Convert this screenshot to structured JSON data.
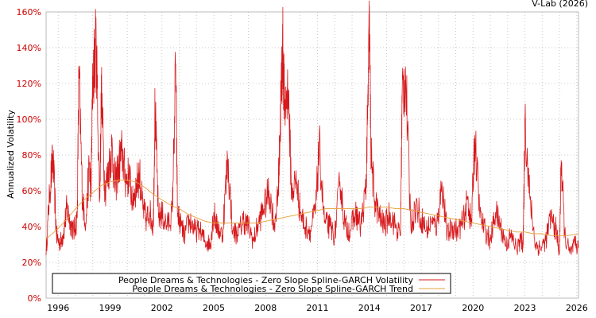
{
  "credit": "V-Lab (2026)",
  "colors": {
    "volatility": "#d7191c",
    "trend": "#e8a33d",
    "grid": "#c8c8c8",
    "tick_label": "#cc0000"
  },
  "chart_data": {
    "type": "line",
    "title": "",
    "xlabel": "",
    "ylabel": "Annualized Volatility",
    "xlim": [
      1995.3,
      2026.1
    ],
    "ylim": [
      0,
      160
    ],
    "y_ticks": [
      0,
      20,
      40,
      60,
      80,
      100,
      120,
      140,
      160
    ],
    "y_tick_labels": [
      "0%",
      "20%",
      "40%",
      "60%",
      "80%",
      "100%",
      "120%",
      "140%",
      "160%"
    ],
    "x_ticks": [
      1996,
      1999,
      2002,
      2005,
      2008,
      2011,
      2014,
      2017,
      2020,
      2023,
      2026
    ],
    "x_tick_labels": [
      "1996",
      "1999",
      "2002",
      "2005",
      "2008",
      "2011",
      "2014",
      "2017",
      "2020",
      "2023",
      "2026"
    ],
    "grid": true,
    "legend_position": "bottom-left",
    "series": [
      {
        "name": "People Dreams & Technologies - Zero Slope Spline-GARCH Volatility",
        "color": "#d7191c",
        "x": [
          1995.3,
          1995.5,
          1995.7,
          1995.9,
          1996.1,
          1996.3,
          1996.5,
          1996.7,
          1996.9,
          1997.1,
          1997.2,
          1997.4,
          1997.6,
          1997.8,
          1997.9,
          1998.0,
          1998.2,
          1998.4,
          1998.5,
          1998.7,
          1998.9,
          1999.1,
          1999.3,
          1999.5,
          1999.7,
          1999.9,
          2000.1,
          2000.3,
          2000.5,
          2000.7,
          2000.9,
          2001.1,
          2001.3,
          2001.5,
          2001.6,
          2001.8,
          2002.0,
          2002.3,
          2002.6,
          2002.8,
          2002.9,
          2003.1,
          2003.3,
          2003.6,
          2003.9,
          2004.2,
          2004.5,
          2004.8,
          2005.0,
          2005.2,
          2005.5,
          2005.8,
          2006.1,
          2006.4,
          2006.7,
          2007.0,
          2007.3,
          2007.6,
          2007.9,
          2008.2,
          2008.5,
          2008.7,
          2008.8,
          2008.9,
          2009.0,
          2009.1,
          2009.3,
          2009.5,
          2009.8,
          2010.0,
          2010.3,
          2010.6,
          2010.9,
          2011.1,
          2011.4,
          2011.7,
          2012.0,
          2012.3,
          2012.6,
          2012.9,
          2013.2,
          2013.5,
          2013.8,
          2013.9,
          2014.0,
          2014.1,
          2014.3,
          2014.6,
          2014.9,
          2015.2,
          2015.5,
          2015.8,
          2015.9,
          2016.1,
          2016.4,
          2016.7,
          2017.0,
          2017.3,
          2017.6,
          2017.9,
          2018.2,
          2018.5,
          2018.8,
          2019.1,
          2019.4,
          2019.7,
          2019.9,
          2020.1,
          2020.4,
          2020.7,
          2021.0,
          2021.3,
          2021.6,
          2021.9,
          2022.2,
          2022.5,
          2022.8,
          2022.9,
          2023.0,
          2023.3,
          2023.6,
          2023.9,
          2024.2,
          2024.5,
          2024.8,
          2025.0,
          2025.1,
          2025.3,
          2025.6,
          2025.9,
          2026.1
        ],
        "values": [
          24,
          60,
          78,
          35,
          30,
          36,
          50,
          43,
          37,
          45,
          128,
          55,
          42,
          75,
          60,
          124,
          142,
          55,
          115,
          60,
          70,
          85,
          62,
          75,
          82,
          66,
          68,
          55,
          62,
          70,
          50,
          44,
          48,
          40,
          107,
          45,
          47,
          40,
          48,
          131,
          48,
          40,
          35,
          44,
          38,
          37,
          32,
          30,
          48,
          40,
          35,
          77,
          38,
          35,
          44,
          40,
          32,
          43,
          50,
          60,
          42,
          55,
          80,
          118,
          140,
          105,
          117,
          60,
          65,
          48,
          40,
          38,
          50,
          85,
          42,
          40,
          35,
          65,
          40,
          38,
          48,
          40,
          60,
          100,
          151,
          80,
          55,
          45,
          40,
          48,
          40,
          35,
          115,
          124,
          40,
          52,
          45,
          38,
          42,
          40,
          65,
          35,
          40,
          38,
          42,
          55,
          40,
          91,
          45,
          38,
          32,
          48,
          40,
          30,
          35,
          28,
          32,
          30,
          100,
          55,
          30,
          28,
          32,
          45,
          38,
          26,
          77,
          35,
          25,
          30,
          28
        ]
      },
      {
        "name": "People Dreams & Technologies - Zero Slope Spline-GARCH Trend",
        "color": "#e8a33d",
        "x": [
          1995.3,
          1996.0,
          1996.5,
          1997.0,
          1997.5,
          1998.0,
          1998.5,
          1999.0,
          1999.5,
          2000.0,
          2000.5,
          2001.0,
          2001.5,
          2002.0,
          2002.5,
          2003.0,
          2003.5,
          2004.0,
          2004.5,
          2005.0,
          2005.5,
          2006.0,
          2006.5,
          2007.0,
          2007.5,
          2008.0,
          2008.5,
          2009.0,
          2009.5,
          2010.0,
          2010.5,
          2011.0,
          2011.5,
          2012.0,
          2012.5,
          2013.0,
          2013.5,
          2014.0,
          2014.5,
          2015.0,
          2015.5,
          2016.0,
          2016.5,
          2017.0,
          2017.5,
          2018.0,
          2018.5,
          2019.0,
          2019.5,
          2020.0,
          2020.5,
          2021.0,
          2021.5,
          2022.0,
          2022.5,
          2023.0,
          2023.5,
          2024.0,
          2024.5,
          2025.0,
          2025.5,
          2026.1
        ],
        "values": [
          33,
          39,
          44,
          50,
          55,
          59,
          63,
          65,
          66,
          66,
          65,
          62,
          58,
          55,
          52,
          50,
          47,
          45,
          43,
          42,
          42,
          42,
          42,
          42,
          42,
          43,
          44,
          45,
          46,
          47,
          48,
          49,
          50,
          50,
          50,
          50,
          50,
          51,
          51,
          51,
          50,
          50,
          49,
          48,
          47,
          46,
          45,
          44,
          43,
          42,
          41,
          40,
          39,
          38,
          37,
          37,
          36,
          36,
          35,
          35,
          35,
          36
        ]
      }
    ]
  }
}
